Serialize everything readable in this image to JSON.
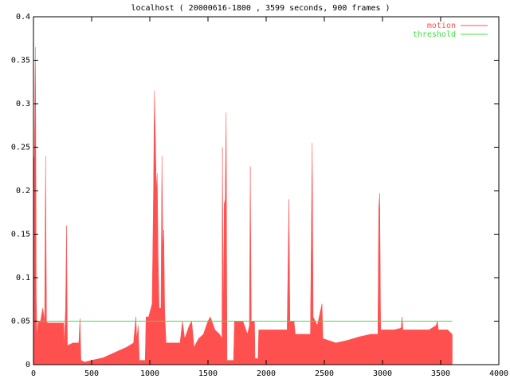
{
  "chart_data": {
    "type": "area",
    "title": "localhost ( 20000616-1800 , 3599 seconds, 900 frames )",
    "xlim": [
      0,
      4000
    ],
    "xticks": [
      0,
      500,
      1000,
      1500,
      2000,
      2500,
      3000,
      3500,
      4000
    ],
    "ylim": [
      0,
      0.4
    ],
    "yticks": [
      0,
      0.05,
      0.1,
      0.15,
      0.2,
      0.25,
      0.3,
      0.35,
      0.4
    ],
    "legend": "top-right",
    "series": [
      {
        "name": "motion",
        "color": "#ff5050",
        "style": "area",
        "x": [
          0,
          8,
          16,
          20,
          24,
          30,
          40,
          60,
          80,
          96,
          104,
          112,
          120,
          200,
          260,
          264,
          276,
          284,
          292,
          340,
          390,
          400,
          408,
          440,
          500,
          600,
          700,
          800,
          860,
          880,
          888,
          900,
          910,
          960,
          968,
          990,
          1000,
          1020,
          1030,
          1040,
          1048,
          1056,
          1064,
          1072,
          1080,
          1096,
          1104,
          1112,
          1120,
          1128,
          1140,
          1200,
          1260,
          1280,
          1300,
          1340,
          1360,
          1380,
          1420,
          1460,
          1500,
          1520,
          1560,
          1600,
          1620,
          1624,
          1632,
          1640,
          1648,
          1656,
          1664,
          1720,
          1728,
          1800,
          1840,
          1856,
          1864,
          1872,
          1900,
          1904,
          1930,
          1936,
          2000,
          2100,
          2180,
          2196,
          2204,
          2240,
          2250,
          2300,
          2380,
          2396,
          2404,
          2440,
          2480,
          2488,
          2600,
          2700,
          2800,
          2900,
          2960,
          2968,
          2976,
          2984,
          3100,
          3160,
          3168,
          3176,
          3400,
          3460,
          3472,
          3480,
          3560,
          3599
        ],
        "values": [
          0.23,
          0.24,
          0.365,
          0.28,
          0.075,
          0.03,
          0.05,
          0.05,
          0.065,
          0.05,
          0.24,
          0.05,
          0.048,
          0.048,
          0.048,
          0.02,
          0.065,
          0.16,
          0.022,
          0.025,
          0.025,
          0.053,
          0.005,
          0.003,
          0.005,
          0.008,
          0.014,
          0.02,
          0.025,
          0.055,
          0.03,
          0.045,
          0.005,
          0.005,
          0.055,
          0.055,
          0.06,
          0.07,
          0.18,
          0.315,
          0.26,
          0.2,
          0.22,
          0.12,
          0.065,
          0.065,
          0.24,
          0.13,
          0.155,
          0.06,
          0.025,
          0.025,
          0.025,
          0.05,
          0.03,
          0.045,
          0.05,
          0.02,
          0.03,
          0.035,
          0.05,
          0.055,
          0.04,
          0.035,
          0.03,
          0.25,
          0.06,
          0.185,
          0.19,
          0.29,
          0.005,
          0.005,
          0.05,
          0.05,
          0.035,
          0.045,
          0.228,
          0.05,
          0.05,
          0.007,
          0.007,
          0.04,
          0.04,
          0.04,
          0.04,
          0.19,
          0.05,
          0.05,
          0.035,
          0.035,
          0.035,
          0.255,
          0.055,
          0.045,
          0.07,
          0.03,
          0.025,
          0.028,
          0.032,
          0.035,
          0.035,
          0.18,
          0.197,
          0.04,
          0.04,
          0.042,
          0.055,
          0.04,
          0.04,
          0.045,
          0.05,
          0.04,
          0.04,
          0.035
        ]
      },
      {
        "name": "threshold",
        "color": "#40e040",
        "style": "line",
        "x": [
          0,
          3599
        ],
        "values": [
          0.05,
          0.05
        ]
      }
    ]
  }
}
